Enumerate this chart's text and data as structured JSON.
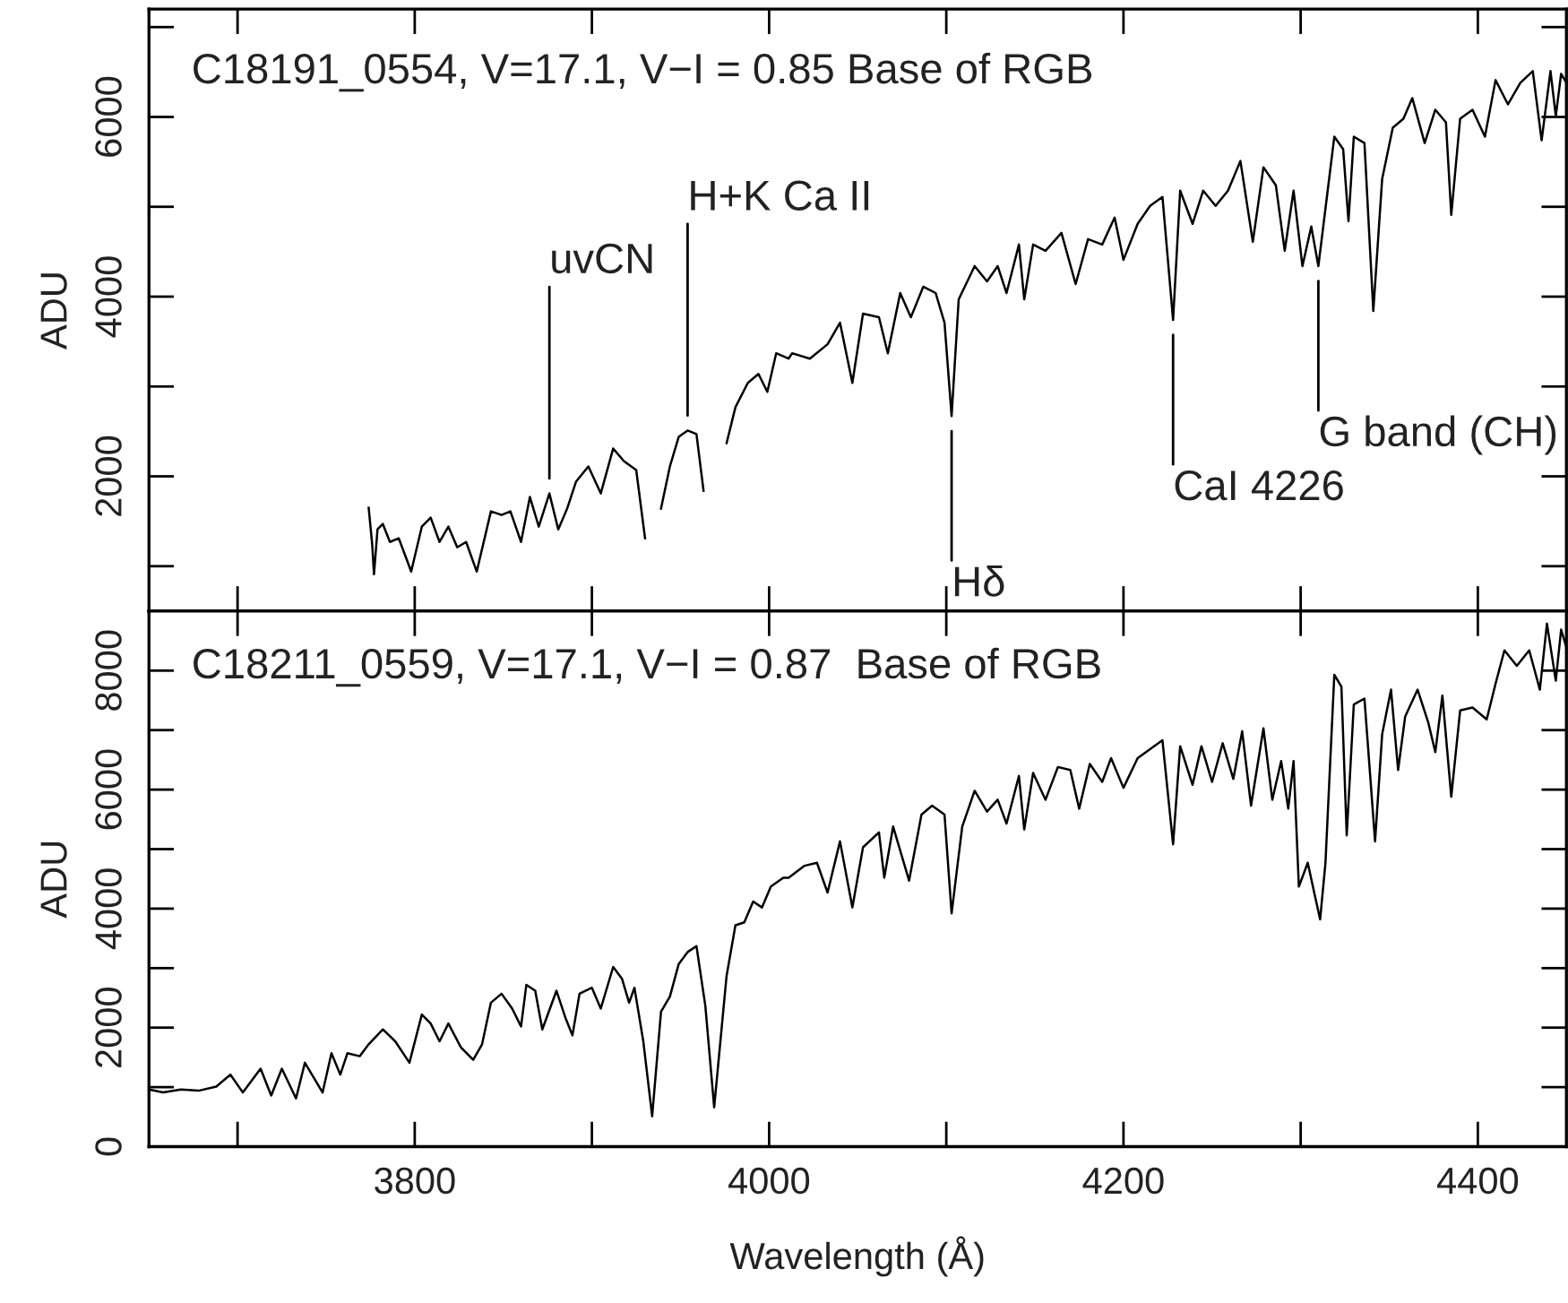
{
  "chart_data": [
    {
      "type": "line",
      "ylabel": "ADU",
      "xlim": [
        3650,
        4450
      ],
      "ylim": [
        500,
        7200
      ],
      "xticks": [
        {
          "value": 3700,
          "label": null
        },
        {
          "value": 3800,
          "label": null
        },
        {
          "value": 3900,
          "label": null
        },
        {
          "value": 4000,
          "label": null
        },
        {
          "value": 4100,
          "label": null
        },
        {
          "value": 4200,
          "label": null
        },
        {
          "value": 4300,
          "label": null
        },
        {
          "value": 4400,
          "label": null
        }
      ],
      "yticks": [
        {
          "value": 1000,
          "label": null
        },
        2000,
        {
          "value": 3000,
          "label": null
        },
        4000,
        {
          "value": 5000,
          "label": null
        },
        6000,
        {
          "value": 7000,
          "label": null
        }
      ],
      "tick_labels": "y",
      "grid": false,
      "legend": false,
      "annotations": [
        "C18191_0554, V=17.1, V−I = 0.85 Base of RGB",
        {
          "text": "uvCN",
          "x": 3876,
          "y": 1810
        },
        {
          "text": "H+K Ca II",
          "x": 3954,
          "y": 2510
        },
        {
          "text": "Hδ",
          "x": 4103,
          "y": 2670
        },
        {
          "text": "CaI 4226",
          "x": 4228,
          "y": 3740
        },
        {
          "text": "G band (CH)",
          "x": 4310,
          "y": 4340
        }
      ],
      "series": [
        {
          "color": "#000000",
          "x": [
            3774,
            3776,
            3777,
            3779,
            3782,
            3786,
            3791,
            3798,
            3804,
            3809,
            3814,
            3819,
            3824,
            3829,
            3835,
            3843,
            3849,
            3854,
            3860,
            3865,
            3870,
            3876,
            3881,
            3886,
            3891,
            3898,
            3905,
            3912,
            3918,
            3925,
            3930,
            3934,
            3939,
            3944,
            3949,
            3954,
            3959,
            3963,
            3969,
            3976,
            3981,
            3988,
            3994,
            3999,
            4004,
            4011,
            4013,
            4023,
            4033,
            4040,
            4047,
            4053,
            4062,
            4067,
            4074,
            4080,
            4087,
            4094,
            4099,
            4103,
            4107,
            4116,
            4123,
            4129,
            4134,
            4141,
            4144,
            4149,
            4156,
            4165,
            4173,
            4180,
            4188,
            4195,
            4200,
            4208,
            4215,
            4222,
            4228,
            4232,
            4239,
            4245,
            4252,
            4259,
            4266,
            4273,
            4279,
            4286,
            4291,
            4296,
            4301,
            4306,
            4310,
            4314,
            4319,
            4324,
            4327,
            4330,
            4336,
            4341,
            4346,
            4352,
            4358,
            4363,
            4370,
            4376,
            4382,
            4385,
            4390,
            4397,
            4404,
            4410,
            4417,
            4424,
            4431,
            4436,
            4441,
            4444,
            4447,
            4450
          ],
          "values": [
            1650,
            1240,
            910,
            1410,
            1470,
            1270,
            1310,
            940,
            1440,
            1540,
            1270,
            1440,
            1210,
            1270,
            940,
            1610,
            1570,
            1610,
            1270,
            1770,
            1440,
            1810,
            1410,
            1640,
            1940,
            2110,
            1810,
            2310,
            2170,
            2070,
            1310,
            null,
            1640,
            2110,
            2440,
            2510,
            2470,
            1840,
            null,
            2370,
            2770,
            3040,
            3140,
            2940,
            3370,
            3310,
            3370,
            3310,
            3470,
            3710,
            3040,
            3810,
            3770,
            3370,
            4040,
            3770,
            4110,
            4040,
            3710,
            2670,
            3970,
            4340,
            4170,
            4340,
            4040,
            4580,
            3970,
            4580,
            4510,
            4710,
            4140,
            4640,
            4580,
            4880,
            4410,
            4810,
            5010,
            5110,
            3740,
            5180,
            4810,
            5180,
            5010,
            5180,
            5510,
            4610,
            5440,
            5240,
            4510,
            5180,
            4340,
            4780,
            4340,
            4980,
            5780,
            5640,
            4840,
            5780,
            5710,
            3840,
            5310,
            5880,
            5980,
            6210,
            5710,
            6080,
            5940,
            4910,
            5980,
            6080,
            5780,
            6410,
            6140,
            6380,
            6510,
            5740,
            6510,
            6010,
            6480,
            6380
          ]
        }
      ]
    },
    {
      "type": "line",
      "ylabel": "ADU",
      "xlabel": "Wavelength (Å)",
      "xlim": [
        3650,
        4450
      ],
      "ylim": [
        0,
        9000
      ],
      "xticks": [
        {
          "value": 3700,
          "label": null
        },
        3800,
        {
          "value": 3900,
          "label": null
        },
        4000,
        {
          "value": 4100,
          "label": null
        },
        4200,
        {
          "value": 4300,
          "label": null
        },
        4400
      ],
      "yticks": [
        0,
        {
          "value": 1000,
          "label": null
        },
        2000,
        {
          "value": 3000,
          "label": null
        },
        4000,
        {
          "value": 5000,
          "label": null
        },
        6000,
        {
          "value": 7000,
          "label": null
        },
        8000
      ],
      "grid": false,
      "legend": false,
      "annotations": [
        "C18211_0559, V=17.1, V−I = 0.87  Base of RGB"
      ],
      "series": [
        {
          "color": "#000000",
          "x": [
            3650,
            3658,
            3668,
            3678,
            3688,
            3696,
            3703,
            3713,
            3719,
            3725,
            3733,
            3738,
            3748,
            3753,
            3758,
            3762,
            3769,
            3774,
            3782,
            3789,
            3797,
            3804,
            3809,
            3814,
            3819,
            3826,
            3833,
            3838,
            3843,
            3849,
            3855,
            3860,
            3863,
            3868,
            3872,
            3880,
            3885,
            3889,
            3893,
            3900,
            3905,
            3912,
            3917,
            3921,
            3924,
            3929,
            3934,
            3939,
            3944,
            3949,
            3954,
            3959,
            3964,
            3969,
            3976,
            3981,
            3986,
            3991,
            3996,
            4001,
            4008,
            4011,
            4020,
            4027,
            4033,
            4040,
            4047,
            4053,
            4062,
            4065,
            4070,
            4079,
            4086,
            4092,
            4099,
            4103,
            4109,
            4116,
            4123,
            4129,
            4134,
            4141,
            4144,
            4149,
            4156,
            4163,
            4170,
            4175,
            4181,
            4188,
            4193,
            4200,
            4208,
            4215,
            4222,
            4228,
            4232,
            4239,
            4244,
            4250,
            4256,
            4262,
            4267,
            4272,
            4279,
            4284,
            4289,
            4293,
            4296,
            4299,
            4304,
            4308,
            4311,
            4314,
            4319,
            4323,
            4326,
            4330,
            4336,
            4342,
            4346,
            4351,
            4355,
            4359,
            4366,
            4372,
            4376,
            4380,
            4385,
            4390,
            4397,
            4405,
            4410,
            4415,
            4422,
            4429,
            4435,
            4439,
            4444,
            4447,
            4450
          ],
          "values": [
            960,
            910,
            960,
            940,
            1010,
            1210,
            910,
            1310,
            860,
            1310,
            810,
            1410,
            910,
            1570,
            1210,
            1570,
            1520,
            1720,
            1970,
            1770,
            1410,
            2220,
            2070,
            1770,
            2070,
            1670,
            1460,
            1720,
            2420,
            2570,
            2320,
            2020,
            2720,
            2620,
            1970,
            2620,
            2170,
            1870,
            2570,
            2670,
            2320,
            3020,
            2820,
            2420,
            2670,
            1770,
            510,
            2270,
            2520,
            3070,
            3270,
            3370,
            2370,
            660,
            2870,
            3720,
            3770,
            4120,
            4020,
            4370,
            4520,
            4520,
            4720,
            4770,
            4270,
            5130,
            4020,
            5030,
            5280,
            4520,
            5380,
            4470,
            5580,
            5730,
            5580,
            3920,
            5380,
            5980,
            5630,
            5830,
            5430,
            6230,
            5330,
            6280,
            5830,
            6380,
            6330,
            5680,
            6430,
            6130,
            6530,
            6030,
            6530,
            6680,
            6830,
            5080,
            6730,
            6080,
            6730,
            6130,
            6780,
            6180,
            6980,
            5730,
            7030,
            5830,
            6480,
            5680,
            6480,
            4370,
            4770,
            4220,
            3820,
            4770,
            7930,
            7730,
            5230,
            7430,
            7530,
            5130,
            6930,
            7680,
            6330,
            7230,
            7680,
            7130,
            6630,
            7580,
            5880,
            7330,
            7380,
            7180,
            7780,
            8340,
            8080,
            8340,
            7680,
            8790,
            7830,
            8690,
            8390
          ]
        }
      ]
    }
  ]
}
